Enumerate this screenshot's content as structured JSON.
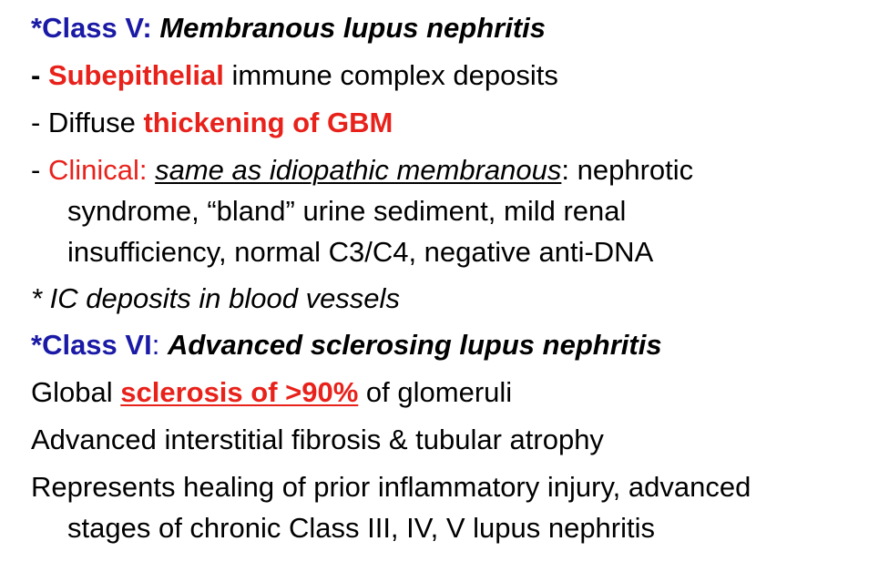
{
  "colors": {
    "heading_blue": "#1a1aa6",
    "emphasis_red": "#e8221b",
    "text_black": "#000000"
  },
  "class_v": {
    "heading_prefix": "*Class V: ",
    "heading_title": "Membranous lupus nephritis",
    "line1_prefix": "- ",
    "line1_red": "Subepithelial",
    "line1_rest": " immune complex deposits",
    "line2_prefix": "- Diffuse ",
    "line2_red": "thickening of GBM",
    "line3_prefix": "- ",
    "line3_red": "Clinical: ",
    "line3_underlined": "same as idiopathic membranous",
    "line3_rest": ": nephrotic",
    "line4": "syndrome, “bland” urine sediment, mild renal",
    "line5": "insufficiency, normal C3/C4, negative anti-DNA",
    "note": "* IC deposits in blood vessels"
  },
  "class_vi": {
    "heading_prefix": "*Class VI",
    "heading_colon": ": ",
    "heading_title": "Advanced sclerosing lupus nephritis",
    "line1_prefix": "Global ",
    "line1_red": "sclerosis of >90%",
    "line1_rest": " of glomeruli",
    "line2": "Advanced interstitial fibrosis & tubular atrophy",
    "line3": "Represents healing of prior inflammatory injury, advanced",
    "line4": "stages of chronic Class III, IV, V lupus nephritis"
  }
}
